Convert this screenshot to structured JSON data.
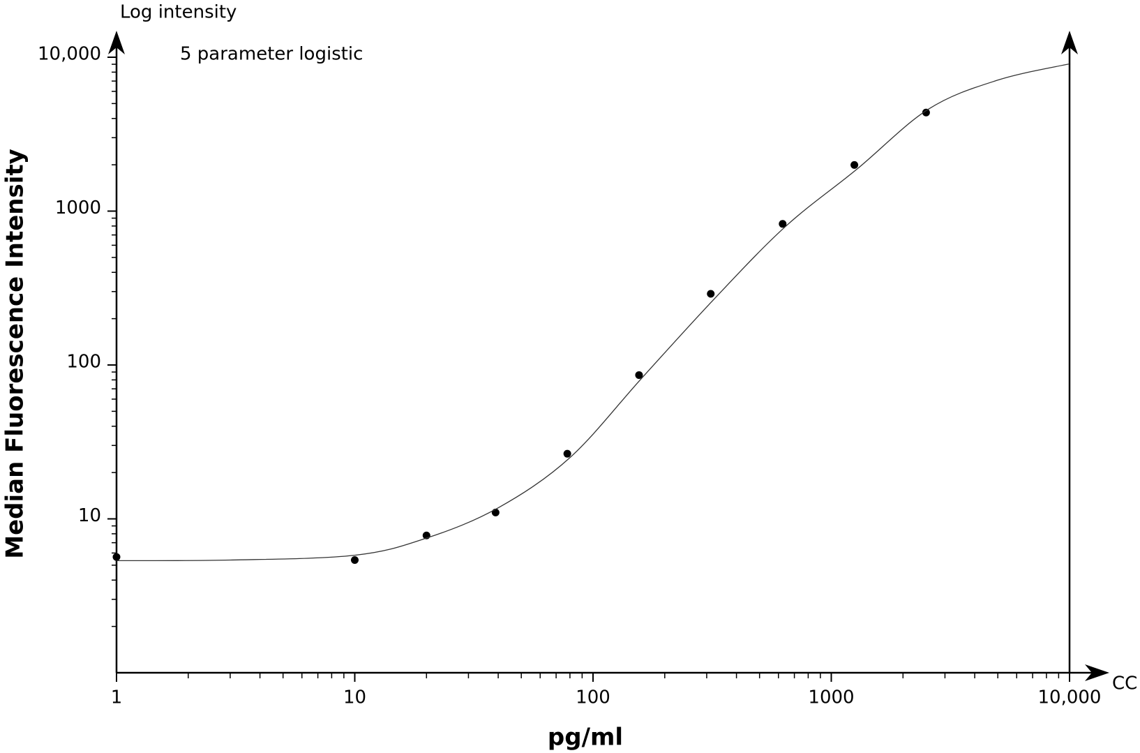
{
  "chart_data": {
    "type": "scatter",
    "annotations": [
      "Log intensity",
      "5 parameter logistic",
      "CC"
    ],
    "xlabel": "pg/ml",
    "ylabel": "Median Fluorescence Intensity",
    "xscale": "log",
    "yscale": "log",
    "xlim": [
      1,
      10000
    ],
    "ylim": [
      1,
      10000
    ],
    "xticks": [
      1,
      10,
      100,
      1000,
      {
        "value": 10000,
        "label": "10,000"
      }
    ],
    "yticks": [
      10,
      100,
      1000,
      {
        "value": 10000,
        "label": "10,000"
      }
    ],
    "minor_ticks": true,
    "series": [
      {
        "type": "scatter",
        "color": "#000000",
        "x": [
          1,
          10,
          20,
          39,
          78,
          156,
          312,
          625,
          1250,
          2500
        ],
        "values": [
          5.65,
          5.4,
          7.8,
          11,
          26.5,
          86,
          290,
          826,
          1995,
          4370
        ]
      },
      {
        "type": "line",
        "color": "#333333",
        "x": [
          1,
          3,
          10,
          20,
          40,
          80,
          160,
          320,
          640,
          1280,
          2560,
          5000,
          10000
        ],
        "values": [
          5.35,
          5.4,
          5.8,
          7.5,
          11.8,
          25,
          82,
          265,
          790,
          1870,
          4600,
          7100,
          9060
        ]
      }
    ]
  }
}
